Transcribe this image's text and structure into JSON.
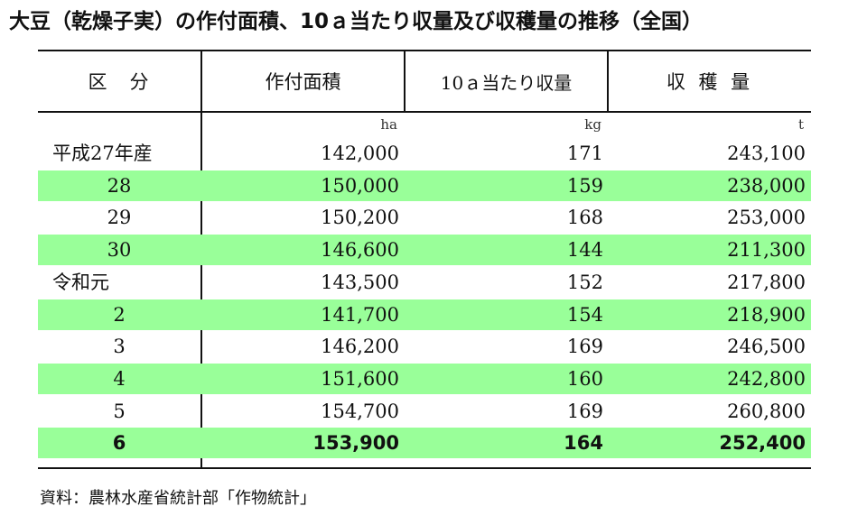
{
  "title": "大豆（乾燥子実）の作付面積、10ａ当たり収量及び収穫量の推移（全国）",
  "headers": [
    "区　分",
    "作付面積",
    "10ａ当たり収量",
    "収 穫 量"
  ],
  "units": [
    "ha",
    "kg",
    "t"
  ],
  "rows": [
    {
      "label": "平成27年産",
      "area": "142,000",
      "yield": "171",
      "harvest": "243,100"
    },
    {
      "label": "28",
      "area": "150,000",
      "yield": "159",
      "harvest": "238,000"
    },
    {
      "label": "29",
      "area": "150,200",
      "yield": "168",
      "harvest": "253,000"
    },
    {
      "label": "30",
      "area": "146,600",
      "yield": "144",
      "harvest": "211,300"
    },
    {
      "label": "令和元",
      "area": "143,500",
      "yield": "152",
      "harvest": "217,800"
    },
    {
      "label": "2",
      "area": "141,700",
      "yield": "154",
      "harvest": "218,900"
    },
    {
      "label": "3",
      "area": "146,200",
      "yield": "169",
      "harvest": "246,500"
    },
    {
      "label": "4",
      "area": "151,600",
      "yield": "160",
      "harvest": "242,800"
    },
    {
      "label": "5",
      "area": "154,700",
      "yield": "169",
      "harvest": "260,800"
    },
    {
      "label": "6",
      "area": "153,900",
      "yield": "164",
      "harvest": "252,400"
    }
  ],
  "highlight_color": "#99ff99",
  "source": "資料：農林水産省統計部「作物統計」"
}
